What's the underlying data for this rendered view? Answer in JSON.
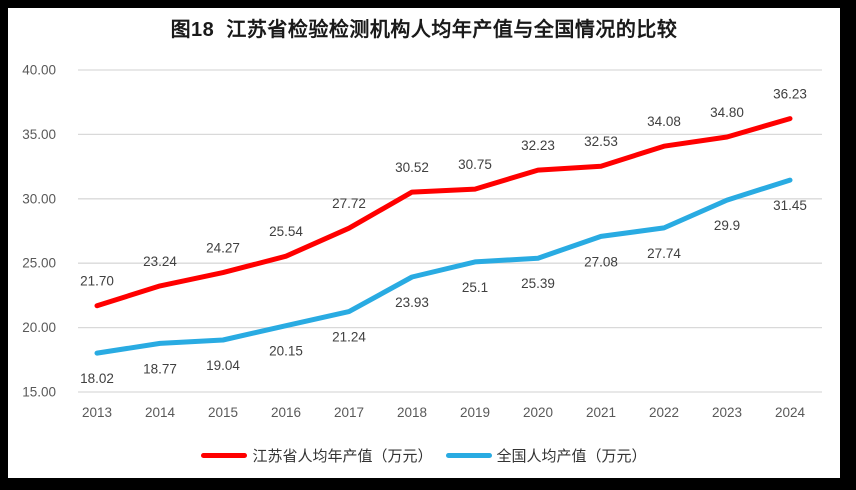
{
  "title": "图18  江苏省检验检测机构人均年产值与全国情况的比较",
  "chart_data": {
    "type": "line",
    "title": "图18  江苏省检验检测机构人均年产值与全国情况的比较",
    "categories": [
      "2013",
      "2014",
      "2015",
      "2016",
      "2017",
      "2018",
      "2019",
      "2020",
      "2021",
      "2022",
      "2023",
      "2024"
    ],
    "series": [
      {
        "name": "江苏省人均年产值（万元）",
        "color": "#ff0000",
        "values": [
          21.7,
          23.24,
          24.27,
          25.54,
          27.72,
          30.52,
          30.75,
          32.23,
          32.53,
          34.08,
          34.8,
          36.23
        ],
        "labels": [
          "21.70",
          "23.24",
          "24.27",
          "25.54",
          "27.72",
          "30.52",
          "30.75",
          "32.23",
          "32.53",
          "34.08",
          "34.80",
          "36.23"
        ],
        "label_position": "above"
      },
      {
        "name": "全国人均产值（万元）",
        "color": "#29abe2",
        "values": [
          18.02,
          18.77,
          19.04,
          20.15,
          21.24,
          23.93,
          25.1,
          25.39,
          27.08,
          27.74,
          29.9,
          31.45
        ],
        "labels": [
          "18.02",
          "18.77",
          "19.04",
          "20.15",
          "21.24",
          "23.93",
          "25.1",
          "25.39",
          "27.08",
          "27.74",
          "29.9",
          "31.45"
        ],
        "label_position": "below"
      }
    ],
    "xlabel": "",
    "ylabel": "",
    "ylim": [
      15,
      40
    ],
    "ytick_labels": [
      "15.00",
      "20.00",
      "25.00",
      "30.00",
      "35.00",
      "40.00"
    ],
    "grid": true,
    "legend_position": "bottom"
  },
  "colors": {
    "grid": "#d9d9d9",
    "tick_label": "#595959",
    "data_label": "#404040",
    "frame": "#000000",
    "series_red": "#ff0000",
    "series_blue": "#29abe2"
  }
}
